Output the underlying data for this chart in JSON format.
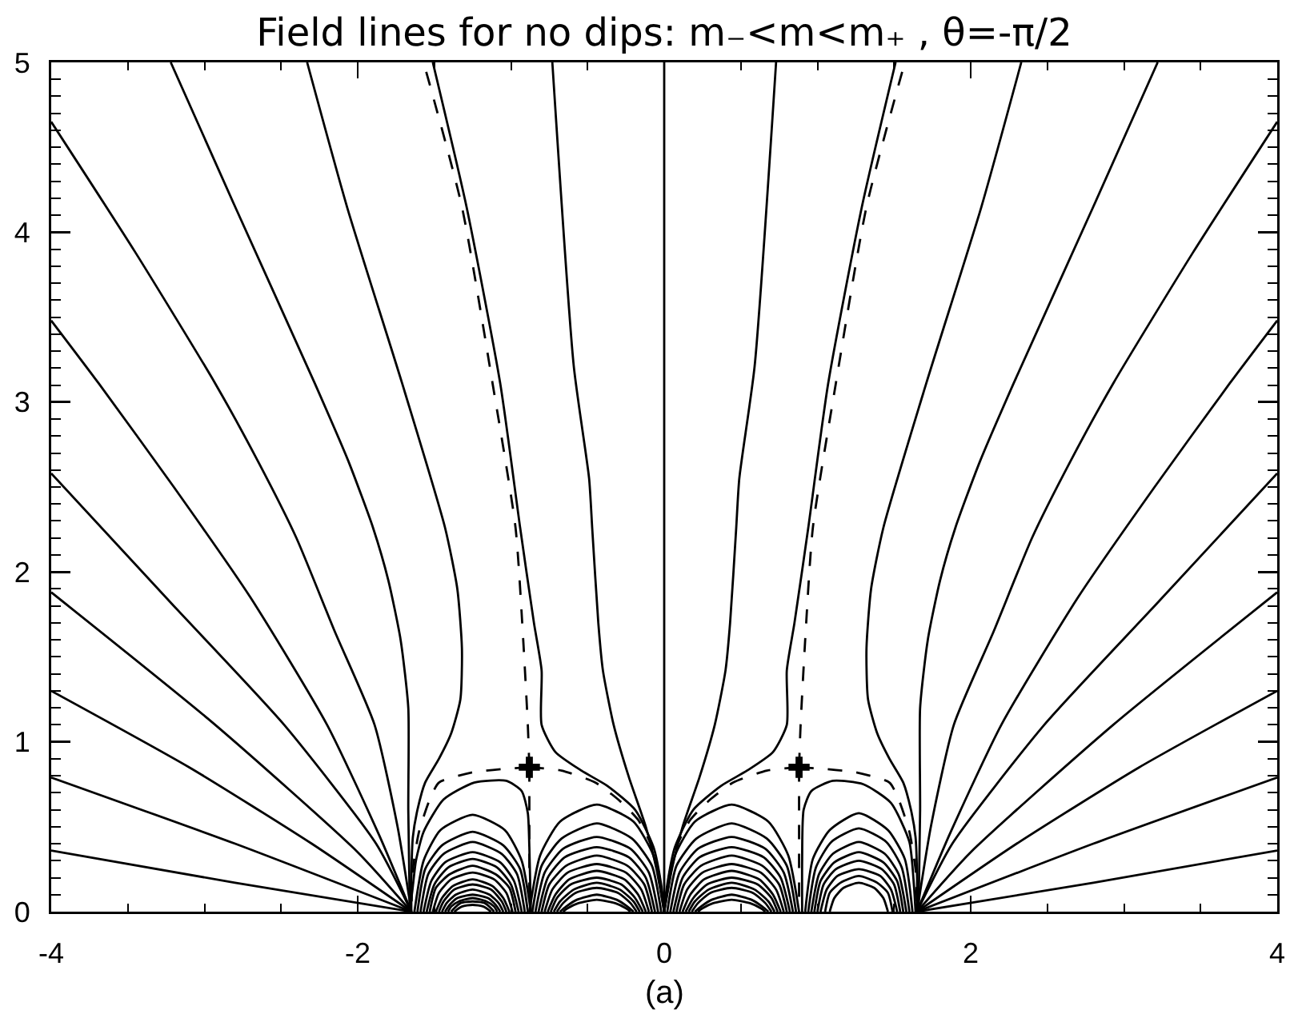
{
  "chart_data": {
    "type": "line",
    "title": "Field lines for no dips: m₋<m<m₊ , θ=-π/2",
    "annotations": [
      "(a)"
    ],
    "color": "#000000",
    "line_style": "solid",
    "xlim": [
      -4,
      4
    ],
    "ylim": [
      0,
      5
    ],
    "xticks": [
      -4,
      {
        "value": -3.5,
        "label": null
      },
      {
        "value": -3,
        "label": null
      },
      {
        "value": -2.5,
        "label": null
      },
      -2,
      {
        "value": -1.5,
        "label": null
      },
      {
        "value": -1,
        "label": null
      },
      {
        "value": -0.5,
        "label": null
      },
      0,
      {
        "value": 0.5,
        "label": null
      },
      {
        "value": 1,
        "label": null
      },
      {
        "value": 1.5,
        "label": null
      },
      2,
      {
        "value": 2.5,
        "label": null
      },
      {
        "value": 3,
        "label": null
      },
      {
        "value": 3.5,
        "label": null
      },
      4
    ],
    "yticks": [
      0,
      {
        "value": 0.1,
        "label": null
      },
      {
        "value": 0.2,
        "label": null
      },
      {
        "value": 0.3,
        "label": null
      },
      {
        "value": 0.4,
        "label": null
      },
      {
        "value": 0.5,
        "label": null
      },
      {
        "value": 0.6,
        "label": null
      },
      {
        "value": 0.7,
        "label": null
      },
      {
        "value": 0.8,
        "label": null
      },
      {
        "value": 0.9,
        "label": null
      },
      1,
      {
        "value": 1.1,
        "label": null
      },
      {
        "value": 1.2,
        "label": null
      },
      {
        "value": 1.3,
        "label": null
      },
      {
        "value": 1.4,
        "label": null
      },
      {
        "value": 1.5,
        "label": null
      },
      {
        "value": 1.6,
        "label": null
      },
      {
        "value": 1.7,
        "label": null
      },
      {
        "value": 1.8,
        "label": null
      },
      {
        "value": 1.9,
        "label": null
      },
      2,
      {
        "value": 2.1,
        "label": null
      },
      {
        "value": 2.2,
        "label": null
      },
      {
        "value": 2.3,
        "label": null
      },
      {
        "value": 2.4,
        "label": null
      },
      {
        "value": 2.5,
        "label": null
      },
      {
        "value": 2.6,
        "label": null
      },
      {
        "value": 2.7,
        "label": null
      },
      {
        "value": 2.8,
        "label": null
      },
      {
        "value": 2.9,
        "label": null
      },
      3,
      {
        "value": 3.1,
        "label": null
      },
      {
        "value": 3.2,
        "label": null
      },
      {
        "value": 3.3,
        "label": null
      },
      {
        "value": 3.4,
        "label": null
      },
      {
        "value": 3.5,
        "label": null
      },
      {
        "value": 3.6,
        "label": null
      },
      {
        "value": 3.7,
        "label": null
      },
      {
        "value": 3.8,
        "label": null
      },
      {
        "value": 3.9,
        "label": null
      },
      4,
      {
        "value": 4.1,
        "label": null
      },
      {
        "value": 4.2,
        "label": null
      },
      {
        "value": 4.3,
        "label": null
      },
      {
        "value": 4.4,
        "label": null
      },
      {
        "value": 4.5,
        "label": null
      },
      {
        "value": 4.6,
        "label": null
      },
      {
        "value": 4.7,
        "label": null
      },
      {
        "value": 4.8,
        "label": null
      },
      {
        "value": 4.9,
        "label": null
      },
      5
    ],
    "series": [
      {
        "x": [
          -4,
          -2.8,
          -1.65
        ],
        "values": [
          0.36,
          0.17,
          0
        ]
      },
      {
        "x": [
          -4,
          -2.8,
          -1.65
        ],
        "values": [
          0.79,
          0.4,
          0
        ]
      },
      {
        "x": [
          -4,
          -3.1,
          -2.3,
          -1.65
        ],
        "values": [
          1.3,
          0.85,
          0.4,
          0
        ]
      },
      {
        "x": [
          -4,
          -2.93,
          -2,
          -1.65
        ],
        "values": [
          1.88,
          1.1,
          0.35,
          0
        ]
      },
      {
        "x": [
          -4,
          -3.2,
          -2.48,
          -1.88,
          -1.65
        ],
        "values": [
          2.58,
          1.8,
          1.1,
          0.4,
          0
        ]
      },
      {
        "x": [
          -4,
          -3.69,
          -3.2,
          -2.7,
          -2.2,
          -1.86,
          -1.65
        ],
        "values": [
          3.48,
          3.11,
          2.5,
          1.85,
          1.1,
          0.45,
          0
        ]
      },
      {
        "x": [
          -4,
          -3.45,
          -2.93,
          -2.65,
          -2.4,
          -2.15,
          -1.89,
          -1.74,
          -1.65
        ],
        "values": [
          4.65,
          3.88,
          3.11,
          2.65,
          2.2,
          1.65,
          1.1,
          0.5,
          0
        ]
      },
      {
        "x": [
          -3.22,
          -2.8,
          -2.28,
          -2.06,
          -1.9,
          -1.8,
          -1.72,
          -1.67,
          -1.67,
          -1.66
        ],
        "values": [
          5,
          4.15,
          3.11,
          2.65,
          2.26,
          1.95,
          1.6,
          1.2,
          0.6,
          0
        ]
      },
      {
        "x": [
          -2.33,
          -2.07,
          -1.71,
          -1.43,
          -1.35,
          -1.32,
          -1.33,
          -1.39,
          -1.47,
          -1.56,
          -1.61,
          -1.64,
          -1.65,
          -1.65
        ],
        "values": [
          5,
          4.15,
          3.11,
          2.26,
          1.9,
          1.55,
          1.25,
          1.05,
          0.9,
          0.76,
          0.6,
          0.44,
          0.2,
          0
        ]
      },
      {
        "x": [
          -1.51,
          -1.29,
          -1.07,
          -0.94,
          -0.85,
          -0.8,
          -0.8,
          -0.71,
          -0.54,
          -0.37,
          -0.19,
          -0.07,
          -0.02,
          0
        ],
        "values": [
          5,
          4.15,
          3.11,
          2.26,
          1.7,
          1.42,
          1.1,
          0.94,
          0.83,
          0.74,
          0.6,
          0.38,
          0.16,
          0
        ]
      },
      {
        "x": [
          -0.73,
          -0.59,
          -0.49,
          -0.47,
          -0.43,
          -0.4,
          -0.33,
          -0.23,
          -0.12,
          -0.05,
          0
        ],
        "values": [
          5,
          3.21,
          2.55,
          2.26,
          1.7,
          1.42,
          1.1,
          0.79,
          0.5,
          0.25,
          0
        ]
      },
      {
        "x": [
          4,
          2.8,
          1.65
        ],
        "values": [
          0.36,
          0.17,
          0
        ]
      },
      {
        "x": [
          4,
          2.8,
          1.65
        ],
        "values": [
          0.79,
          0.4,
          0
        ]
      },
      {
        "x": [
          4,
          3.1,
          2.3,
          1.65
        ],
        "values": [
          1.3,
          0.85,
          0.4,
          0
        ]
      },
      {
        "x": [
          4,
          2.93,
          2,
          1.65
        ],
        "values": [
          1.88,
          1.1,
          0.35,
          0
        ]
      },
      {
        "x": [
          4,
          3.2,
          2.48,
          1.88,
          1.65
        ],
        "values": [
          2.58,
          1.8,
          1.1,
          0.4,
          0
        ]
      },
      {
        "x": [
          4,
          3.69,
          3.2,
          2.7,
          2.2,
          1.86,
          1.65
        ],
        "values": [
          3.48,
          3.11,
          2.5,
          1.85,
          1.1,
          0.45,
          0
        ]
      },
      {
        "x": [
          4,
          3.45,
          2.93,
          2.65,
          2.4,
          2.15,
          1.89,
          1.74,
          1.65
        ],
        "values": [
          4.65,
          3.88,
          3.11,
          2.65,
          2.2,
          1.65,
          1.1,
          0.5,
          0
        ]
      },
      {
        "x": [
          3.22,
          2.8,
          2.28,
          2.06,
          1.9,
          1.8,
          1.72,
          1.67,
          1.67,
          1.66
        ],
        "values": [
          5,
          4.15,
          3.11,
          2.65,
          2.26,
          1.95,
          1.6,
          1.2,
          0.6,
          0
        ]
      },
      {
        "x": [
          2.33,
          2.07,
          1.71,
          1.43,
          1.35,
          1.32,
          1.33,
          1.39,
          1.47,
          1.56,
          1.61,
          1.64,
          1.65,
          1.65
        ],
        "values": [
          5,
          4.15,
          3.11,
          2.26,
          1.9,
          1.55,
          1.25,
          1.05,
          0.9,
          0.76,
          0.6,
          0.44,
          0.2,
          0
        ]
      },
      {
        "x": [
          1.51,
          1.29,
          1.07,
          0.94,
          0.85,
          0.8,
          0.8,
          0.71,
          0.54,
          0.37,
          0.19,
          0.07,
          0.02,
          0
        ],
        "values": [
          5,
          4.15,
          3.11,
          2.26,
          1.7,
          1.42,
          1.1,
          0.94,
          0.83,
          0.74,
          0.6,
          0.38,
          0.16,
          0
        ]
      },
      {
        "x": [
          0.73,
          0.59,
          0.49,
          0.47,
          0.43,
          0.4,
          0.33,
          0.23,
          0.12,
          0.05,
          0
        ],
        "values": [
          5,
          3.21,
          2.55,
          2.26,
          1.7,
          1.42,
          1.1,
          0.79,
          0.5,
          0.25,
          0
        ]
      },
      {
        "x": [
          -1.66,
          -1.64,
          -1.62,
          -1.57,
          -1.44,
          -1.24,
          -1.03,
          -0.93,
          -0.89,
          -0.88,
          -0.87,
          null,
          -1.63,
          -1.57,
          -1.46,
          -1.25,
          -1.04,
          -0.93,
          -0.87,
          null,
          -1.61,
          -1.56,
          -1.45,
          -1.25,
          -1.05,
          -0.94,
          -0.89,
          null,
          -1.59,
          -1.54,
          -1.44,
          -1.25,
          -1.06,
          -0.96,
          -0.91,
          null,
          -1.57,
          -1.52,
          -1.43,
          -1.25,
          -1.07,
          -0.98,
          -0.93,
          null,
          -1.55,
          -1.5,
          -1.41,
          -1.25,
          -1.09,
          -1,
          -0.95,
          null,
          -1.53,
          -1.49,
          -1.4,
          -1.25,
          -1.1,
          -1.01,
          -0.97,
          null,
          -1.51,
          -1.47,
          -1.39,
          -1.25,
          -1.11,
          -1.03,
          -0.99,
          null,
          -1.49,
          -1.45,
          -1.38,
          -1.25,
          -1.12,
          -1.05,
          -1.01,
          null,
          -1.47,
          -1.44,
          -1.37,
          -1.25,
          -1.13,
          -1.06,
          -1.03,
          null,
          -1.45,
          -1.42,
          -1.36,
          -1.25,
          -1.14,
          -1.08,
          -1.05,
          null,
          -1.43,
          -1.4,
          -1.35,
          -1.25,
          -1.15,
          -1.1,
          -1.07,
          null,
          -1.41,
          -1.39,
          -1.34,
          -1.25,
          -1.16,
          -1.11,
          -1.09,
          null,
          -1.39,
          -1.37,
          -1.33,
          -1.25,
          -1.17,
          -1.13,
          -1.11,
          null,
          -1.37,
          -1.32,
          -1.25,
          -1.18,
          -1.13
        ],
        "values": [
          0,
          0.15,
          0.3,
          0.47,
          0.66,
          0.76,
          0.77,
          0.71,
          0.58,
          0.38,
          0,
          null,
          0,
          0.3,
          0.48,
          0.57,
          0.48,
          0.3,
          0,
          null,
          0,
          0.25,
          0.39,
          0.47,
          0.39,
          0.25,
          0,
          null,
          0,
          0.22,
          0.34,
          0.41,
          0.34,
          0.22,
          0,
          null,
          0,
          0.18,
          0.29,
          0.35,
          0.29,
          0.18,
          0,
          null,
          0,
          0.16,
          0.26,
          0.31,
          0.26,
          0.16,
          0,
          null,
          0,
          0.14,
          0.22,
          0.27,
          0.22,
          0.14,
          0,
          null,
          0,
          0.11,
          0.19,
          0.23,
          0.19,
          0.11,
          0,
          null,
          0,
          0.08,
          0.15,
          0.19,
          0.15,
          0.08,
          0,
          null,
          0,
          0.06,
          0.13,
          0.16,
          0.13,
          0.06,
          0,
          null,
          0,
          0.05,
          0.1,
          0.13,
          0.1,
          0.05,
          0,
          null,
          0,
          0.04,
          0.08,
          0.1,
          0.08,
          0.04,
          0,
          null,
          0,
          0.03,
          0.06,
          0.08,
          0.06,
          0.03,
          0,
          null,
          0,
          0.02,
          0.05,
          0.06,
          0.05,
          0.02,
          0,
          null,
          0,
          0.03,
          0.04,
          0.03,
          0
        ]
      },
      {
        "x": [
          -0.88,
          -0.81,
          -0.68,
          -0.44,
          -0.2,
          -0.07,
          0,
          null,
          -0.86,
          -0.8,
          -0.67,
          -0.44,
          -0.21,
          -0.08,
          -0.02,
          null,
          -0.84,
          -0.78,
          -0.66,
          -0.44,
          -0.22,
          -0.1,
          -0.04,
          null,
          -0.82,
          -0.76,
          -0.65,
          -0.44,
          -0.23,
          -0.12,
          -0.06,
          null,
          -0.8,
          -0.75,
          -0.64,
          -0.44,
          -0.24,
          -0.13,
          -0.08,
          null,
          -0.78,
          -0.73,
          -0.63,
          -0.44,
          -0.25,
          -0.15,
          -0.1,
          null,
          -0.76,
          -0.71,
          -0.62,
          -0.44,
          -0.26,
          -0.17,
          -0.12,
          null,
          -0.74,
          -0.7,
          -0.61,
          -0.44,
          -0.28,
          -0.19,
          -0.14,
          null,
          -0.72,
          -0.68,
          -0.59,
          -0.44,
          -0.29,
          -0.2,
          -0.16,
          null,
          -0.7,
          -0.66,
          -0.58,
          -0.44,
          -0.3,
          -0.22,
          -0.18,
          null,
          -0.68,
          -0.64,
          -0.57,
          -0.44,
          -0.31,
          -0.24,
          -0.2,
          null,
          -0.66,
          -0.63,
          -0.56,
          -0.44,
          -0.32,
          -0.25,
          -0.22
        ],
        "values": [
          0,
          0.33,
          0.53,
          0.63,
          0.53,
          0.33,
          0,
          null,
          0,
          0.27,
          0.43,
          0.52,
          0.43,
          0.27,
          0,
          null,
          0,
          0.23,
          0.37,
          0.44,
          0.37,
          0.23,
          0,
          null,
          0,
          0.2,
          0.32,
          0.38,
          0.32,
          0.2,
          0,
          null,
          0,
          0.16,
          0.27,
          0.33,
          0.27,
          0.16,
          0,
          null,
          0,
          0.13,
          0.23,
          0.28,
          0.23,
          0.13,
          0,
          null,
          0,
          0.1,
          0.19,
          0.24,
          0.19,
          0.1,
          0,
          null,
          0,
          0.08,
          0.16,
          0.2,
          0.16,
          0.08,
          0,
          null,
          0,
          0.06,
          0.13,
          0.17,
          0.13,
          0.06,
          0,
          null,
          0,
          0.05,
          0.11,
          0.14,
          0.11,
          0.05,
          0,
          null,
          0,
          0.03,
          0.07,
          0.1,
          0.07,
          0.03,
          0,
          null,
          0,
          0.02,
          0.05,
          0.07,
          0.05,
          0.02,
          0
        ]
      },
      {
        "x": [
          0.88,
          0.81,
          0.68,
          0.44,
          0.2,
          0.07,
          0,
          null,
          0.86,
          0.8,
          0.67,
          0.44,
          0.21,
          0.08,
          0.02,
          null,
          0.84,
          0.78,
          0.66,
          0.44,
          0.22,
          0.1,
          0.04,
          null,
          0.82,
          0.76,
          0.65,
          0.44,
          0.23,
          0.12,
          0.06,
          null,
          0.8,
          0.75,
          0.64,
          0.44,
          0.24,
          0.13,
          0.08,
          null,
          0.78,
          0.73,
          0.63,
          0.44,
          0.25,
          0.15,
          0.1,
          null,
          0.76,
          0.71,
          0.62,
          0.44,
          0.26,
          0.17,
          0.12,
          null,
          0.74,
          0.7,
          0.61,
          0.44,
          0.28,
          0.19,
          0.14,
          null,
          0.72,
          0.68,
          0.59,
          0.44,
          0.29,
          0.2,
          0.16,
          null,
          0.7,
          0.66,
          0.58,
          0.44,
          0.3,
          0.22,
          0.18,
          null,
          0.68,
          0.64,
          0.57,
          0.44,
          0.31,
          0.24,
          0.2,
          null,
          0.66,
          0.63,
          0.56,
          0.44,
          0.32,
          0.25,
          0.22
        ],
        "values": [
          0,
          0.33,
          0.53,
          0.63,
          0.53,
          0.33,
          0,
          null,
          0,
          0.27,
          0.43,
          0.52,
          0.43,
          0.27,
          0,
          null,
          0,
          0.23,
          0.37,
          0.44,
          0.37,
          0.23,
          0,
          null,
          0,
          0.2,
          0.32,
          0.38,
          0.32,
          0.2,
          0,
          null,
          0,
          0.16,
          0.27,
          0.33,
          0.27,
          0.16,
          0,
          null,
          0,
          0.13,
          0.23,
          0.28,
          0.23,
          0.13,
          0,
          null,
          0,
          0.1,
          0.19,
          0.24,
          0.19,
          0.1,
          0,
          null,
          0,
          0.08,
          0.16,
          0.2,
          0.16,
          0.08,
          0,
          null,
          0,
          0.06,
          0.13,
          0.17,
          0.13,
          0.06,
          0,
          null,
          0,
          0.05,
          0.11,
          0.14,
          0.11,
          0.05,
          0,
          null,
          0,
          0.03,
          0.07,
          0.1,
          0.07,
          0.03,
          0,
          null,
          0,
          0.02,
          0.05,
          0.07,
          0.05,
          0.02,
          0
        ]
      },
      {
        "x": [
          0.9,
          0.9,
          0.91,
          0.96,
          1.1,
          1.3,
          1.48,
          1.6,
          1.63,
          1.64,
          null,
          0.92,
          0.97,
          1.08,
          1.27,
          1.46,
          1.57,
          1.62,
          null,
          0.94,
          0.99,
          1.09,
          1.27,
          1.45,
          1.55,
          1.6,
          null,
          0.96,
          1.01,
          1.1,
          1.27,
          1.44,
          1.53,
          1.58,
          null,
          0.98,
          1.02,
          1.11,
          1.27,
          1.43,
          1.52,
          1.56,
          null,
          1,
          1.04,
          1.12,
          1.27,
          1.42,
          1.5,
          1.54,
          null,
          1.02,
          1.06,
          1.13,
          1.27,
          1.41,
          1.48,
          1.52,
          null,
          1.05,
          1.08,
          1.15,
          1.27,
          1.39,
          1.46,
          1.49,
          null,
          1.08,
          1.11,
          1.17,
          1.27,
          1.37,
          1.43,
          1.46
        ],
        "values": [
          0,
          0.3,
          0.6,
          0.71,
          0.77,
          0.75,
          0.64,
          0.41,
          0.15,
          0,
          null,
          0,
          0.31,
          0.48,
          0.58,
          0.48,
          0.31,
          0,
          null,
          0,
          0.26,
          0.41,
          0.49,
          0.41,
          0.26,
          0,
          null,
          0,
          0.22,
          0.34,
          0.41,
          0.34,
          0.22,
          0,
          null,
          0,
          0.18,
          0.29,
          0.35,
          0.29,
          0.18,
          0,
          null,
          0,
          0.16,
          0.25,
          0.3,
          0.25,
          0.16,
          0,
          null,
          0,
          0.13,
          0.21,
          0.25,
          0.21,
          0.13,
          0,
          null,
          0,
          0.11,
          0.17,
          0.21,
          0.17,
          0.11,
          0,
          null,
          0,
          0.08,
          0.14,
          0.17,
          0.14,
          0.08,
          0
        ]
      },
      {
        "line_style": "dashed",
        "x": [
          -0.88,
          -0.89,
          -0.92,
          -0.97,
          -1.12,
          -1.32,
          -1.57
        ],
        "values": [
          0.85,
          1.1,
          1.6,
          2.26,
          3.11,
          4.15,
          5
        ]
      },
      {
        "line_style": "dashed",
        "x": [
          -0.88,
          -1.05,
          -1.25,
          -1.47,
          -1.53,
          -1.6,
          -1.64,
          -1.65
        ],
        "values": [
          0.85,
          0.84,
          0.82,
          0.76,
          0.66,
          0.47,
          0.25,
          0
        ]
      },
      {
        "line_style": "dashed",
        "x": [
          -0.88,
          -0.67,
          -0.45,
          -0.3,
          -0.17,
          -0.07,
          -0.02,
          0
        ],
        "values": [
          0.85,
          0.83,
          0.76,
          0.66,
          0.54,
          0.36,
          0.15,
          0
        ]
      },
      {
        "line_style": "dashed",
        "x": [
          -0.88,
          -0.88
        ],
        "values": [
          0.85,
          0
        ]
      },
      {
        "line_style": "dashed",
        "x": [
          0.88,
          0.89,
          0.92,
          0.97,
          1.12,
          1.32,
          1.57
        ],
        "values": [
          0.85,
          1.1,
          1.6,
          2.26,
          3.11,
          4.15,
          5
        ]
      },
      {
        "line_style": "dashed",
        "x": [
          0.88,
          1.05,
          1.25,
          1.47,
          1.53,
          1.6,
          1.64,
          1.65
        ],
        "values": [
          0.85,
          0.84,
          0.82,
          0.76,
          0.66,
          0.47,
          0.25,
          0
        ]
      },
      {
        "line_style": "dashed",
        "x": [
          0.88,
          0.67,
          0.45,
          0.3,
          0.17,
          0.07,
          0.02,
          0
        ],
        "values": [
          0.85,
          0.83,
          0.76,
          0.66,
          0.54,
          0.36,
          0.15,
          0
        ]
      },
      {
        "line_style": "dashed",
        "x": [
          0.88,
          0.88
        ],
        "values": [
          0.85,
          0
        ]
      },
      {
        "x": [
          0,
          0,
          0,
          0,
          0,
          0
        ],
        "values": [
          0,
          1,
          2,
          3,
          4,
          5
        ]
      },
      {
        "type": "scatter",
        "marker": "cross",
        "x": [
          -0.88,
          0.88
        ],
        "values": [
          0.85,
          0.85
        ]
      }
    ]
  }
}
